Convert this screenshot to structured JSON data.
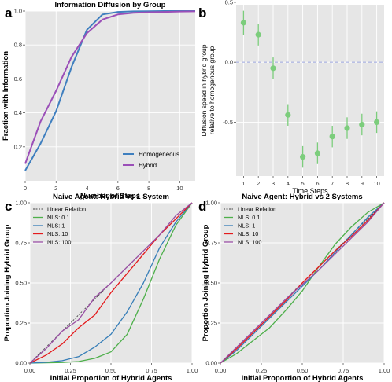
{
  "colors": {
    "panel_bg": "#e6e6e6",
    "grid": "#ffffff",
    "homogeneous": "#3f7fbf",
    "hybrid": "#9b4fb8",
    "point": "#7ccd7c",
    "dashed_ref": "#9da6e0",
    "nls_0_1": "#4daf4a",
    "nls_1": "#377eb8",
    "nls_10": "#e41a1c",
    "nls_100": "#984ea3",
    "linear": "#444444"
  },
  "chart_data": [
    {
      "panel": "a",
      "type": "line",
      "title": "Information Diffusion by Group",
      "xlabel": "Number of Steps",
      "ylabel": "Fraction with Information",
      "xlim": [
        0,
        11
      ],
      "ylim": [
        0,
        1
      ],
      "xticks": [
        0,
        2,
        4,
        6,
        8,
        10
      ],
      "yticks": [
        0.2,
        0.4,
        0.6,
        0.8,
        1.0
      ],
      "ytick_labels": [
        "0.2",
        "0.4",
        "0.6",
        "0.8",
        "1.0"
      ],
      "legend": "bottom-right",
      "series": [
        {
          "name": "Homogeneous",
          "x": [
            0,
            1,
            2,
            3,
            4,
            5,
            6,
            7,
            8,
            9,
            10,
            11
          ],
          "y": [
            0.06,
            0.22,
            0.41,
            0.67,
            0.89,
            0.98,
            0.995,
            0.998,
            0.999,
            1.0,
            1.0,
            1.0
          ]
        },
        {
          "name": "Hybrid",
          "x": [
            0,
            1,
            2,
            3,
            4,
            5,
            6,
            7,
            8,
            9,
            10,
            11
          ],
          "y": [
            0.1,
            0.35,
            0.53,
            0.73,
            0.87,
            0.95,
            0.98,
            0.99,
            0.993,
            0.995,
            0.997,
            0.998
          ]
        }
      ]
    },
    {
      "panel": "b",
      "type": "scatter",
      "title": "",
      "xlabel": "Time Steps",
      "ylabel": "Diffusion speed in hybrid group relative to homogenous group",
      "ylabel_lines": [
        "Diffusion speed in hybrid group",
        "relative to homogenous group"
      ],
      "xlim": [
        0.5,
        10.5
      ],
      "ylim": [
        -0.95,
        0.48
      ],
      "xticks": [
        1,
        2,
        3,
        4,
        5,
        6,
        7,
        8,
        9,
        10
      ],
      "yticks": [
        0.5,
        0.0,
        -0.5
      ],
      "ytick_labels": [
        "0.5",
        "0.0",
        "-0.5"
      ],
      "reference_line": 0,
      "points": [
        {
          "x": 1,
          "y": 0.33,
          "lo": 0.23,
          "hi": 0.43
        },
        {
          "x": 2,
          "y": 0.23,
          "lo": 0.14,
          "hi": 0.32
        },
        {
          "x": 3,
          "y": -0.05,
          "lo": -0.14,
          "hi": 0.04
        },
        {
          "x": 4,
          "y": -0.44,
          "lo": -0.53,
          "hi": -0.35
        },
        {
          "x": 5,
          "y": -0.79,
          "lo": -0.88,
          "hi": -0.7
        },
        {
          "x": 6,
          "y": -0.76,
          "lo": -0.85,
          "hi": -0.67
        },
        {
          "x": 7,
          "y": -0.62,
          "lo": -0.71,
          "hi": -0.53
        },
        {
          "x": 8,
          "y": -0.55,
          "lo": -0.64,
          "hi": -0.46
        },
        {
          "x": 9,
          "y": -0.52,
          "lo": -0.61,
          "hi": -0.43
        },
        {
          "x": 10,
          "y": -0.5,
          "lo": -0.59,
          "hi": -0.41
        }
      ]
    },
    {
      "panel": "c",
      "type": "line",
      "title": "Naive Agent: Hybrid vs 1 System",
      "xlabel": "Initial Proportion of Hybrid Agents",
      "ylabel": "Proportion Joining Hybrid Group",
      "xlim": [
        0,
        1
      ],
      "ylim": [
        0,
        1
      ],
      "xticks": [
        0,
        0.25,
        0.5,
        0.75,
        1.0
      ],
      "xtick_labels": [
        "0.00",
        "0.25",
        "0.50",
        "0.75",
        "1.00"
      ],
      "yticks": [
        0,
        0.25,
        0.5,
        0.75,
        1.0
      ],
      "ytick_labels": [
        "0.00",
        "0.25",
        "0.50",
        "0.75",
        "1.00"
      ],
      "legend": "top-left",
      "series": [
        {
          "name": "Linear Relation",
          "x": [
            0,
            1
          ],
          "y": [
            0,
            1
          ]
        },
        {
          "name": "NLS: 0.1",
          "x": [
            0,
            0.1,
            0.2,
            0.3,
            0.4,
            0.5,
            0.6,
            0.7,
            0.8,
            0.9,
            1.0
          ],
          "y": [
            0,
            0.002,
            0.004,
            0.01,
            0.03,
            0.07,
            0.18,
            0.4,
            0.65,
            0.86,
            1.0
          ]
        },
        {
          "name": "NLS: 1",
          "x": [
            0,
            0.1,
            0.2,
            0.3,
            0.4,
            0.5,
            0.6,
            0.7,
            0.8,
            0.9,
            1.0
          ],
          "y": [
            0,
            0.005,
            0.015,
            0.04,
            0.1,
            0.18,
            0.32,
            0.5,
            0.72,
            0.88,
            1.0
          ]
        },
        {
          "name": "NLS: 10",
          "x": [
            0,
            0.1,
            0.2,
            0.3,
            0.4,
            0.5,
            0.6,
            0.7,
            0.8,
            0.9,
            1.0
          ],
          "y": [
            0,
            0.05,
            0.12,
            0.22,
            0.3,
            0.44,
            0.56,
            0.68,
            0.8,
            0.9,
            1.0
          ]
        },
        {
          "name": "NLS: 100",
          "x": [
            0,
            0.1,
            0.2,
            0.3,
            0.4,
            0.5,
            0.6,
            0.7,
            0.8,
            0.9,
            1.0
          ],
          "y": [
            0,
            0.09,
            0.2,
            0.27,
            0.41,
            0.5,
            0.6,
            0.7,
            0.8,
            0.92,
            1.0
          ]
        }
      ]
    },
    {
      "panel": "d",
      "type": "line",
      "title": "Naive Agent: Hybrid vs 2 Systems",
      "xlabel": "Initial Proportion of Hybrid Agents",
      "ylabel": "Proportion Joining Hybrid Group",
      "xlim": [
        0,
        1
      ],
      "ylim": [
        0,
        1
      ],
      "xticks": [
        0,
        0.25,
        0.5,
        0.75,
        1.0
      ],
      "xtick_labels": [
        "0.00",
        "0.25",
        "0.50",
        "0.75",
        "1.00"
      ],
      "yticks": [
        0,
        0.25,
        0.5,
        0.75,
        1.0
      ],
      "ytick_labels": [
        "0.00",
        "0.25",
        "0.50",
        "0.75",
        "1.00"
      ],
      "legend": "top-left",
      "series": [
        {
          "name": "Linear Relation",
          "x": [
            0,
            1
          ],
          "y": [
            0,
            1
          ]
        },
        {
          "name": "NLS: 0.1",
          "x": [
            0,
            0.1,
            0.2,
            0.3,
            0.4,
            0.5,
            0.6,
            0.7,
            0.8,
            0.9,
            1.0
          ],
          "y": [
            0,
            0.06,
            0.14,
            0.22,
            0.33,
            0.45,
            0.6,
            0.74,
            0.85,
            0.94,
            1.0
          ]
        },
        {
          "name": "NLS: 1",
          "x": [
            0,
            0.1,
            0.2,
            0.3,
            0.4,
            0.5,
            0.6,
            0.7,
            0.8,
            0.9,
            1.0
          ],
          "y": [
            0,
            0.08,
            0.18,
            0.28,
            0.38,
            0.48,
            0.58,
            0.69,
            0.8,
            0.91,
            1.0
          ]
        },
        {
          "name": "NLS: 10",
          "x": [
            0,
            0.1,
            0.2,
            0.3,
            0.4,
            0.5,
            0.6,
            0.7,
            0.8,
            0.9,
            1.0
          ],
          "y": [
            0,
            0.09,
            0.19,
            0.29,
            0.39,
            0.5,
            0.6,
            0.7,
            0.79,
            0.89,
            1.0
          ]
        },
        {
          "name": "NLS: 100",
          "x": [
            0,
            0.1,
            0.2,
            0.3,
            0.4,
            0.5,
            0.6,
            0.7,
            0.8,
            0.9,
            1.0
          ],
          "y": [
            0,
            0.1,
            0.2,
            0.3,
            0.4,
            0.49,
            0.58,
            0.68,
            0.78,
            0.88,
            1.0
          ]
        }
      ]
    }
  ]
}
